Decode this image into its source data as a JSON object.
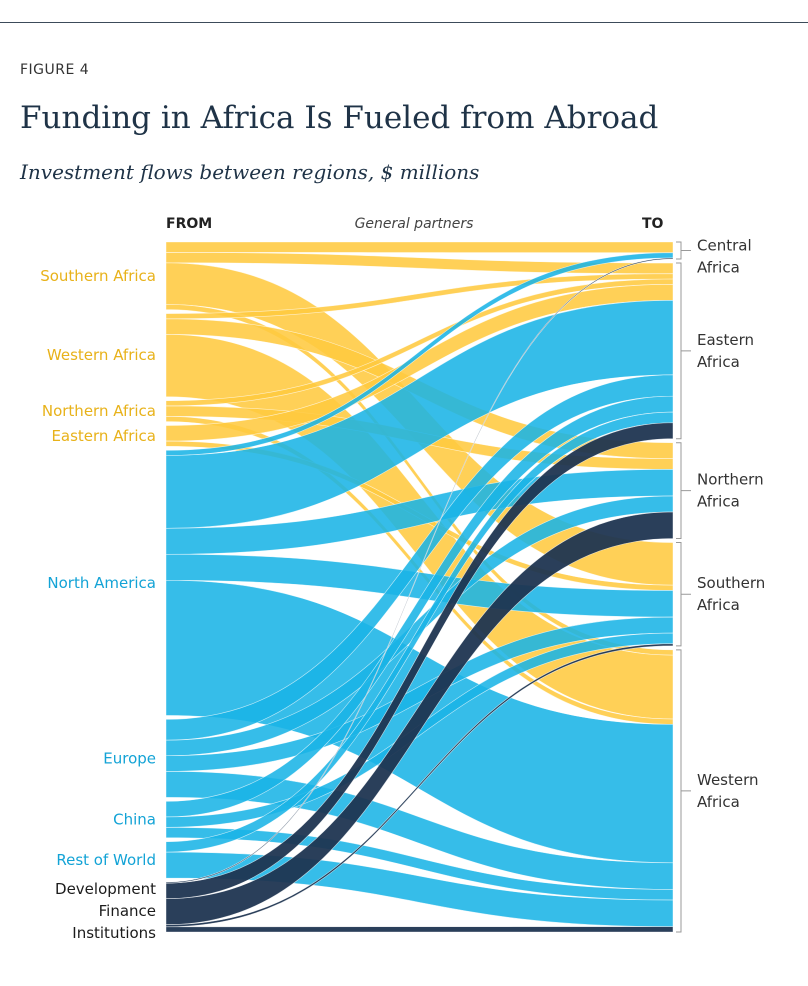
{
  "figure_label": "FIGURE 4",
  "title": "Funding in Africa Is Fueled from Abroad",
  "subtitle": "Investment flows between regions, $ millions",
  "colors": {
    "african": "#ffc940",
    "foreign": "#1ab4e6",
    "dfi": "#1f3551",
    "left_label_african": "#e8b21a",
    "left_label_foreign": "#13a3d6",
    "right_label": "#333333"
  },
  "chart_data": {
    "type": "sankey",
    "header_from": "FROM",
    "header_middle": "General partners",
    "header_to": "TO",
    "sources": [
      {
        "name": "Southern Africa",
        "group": "african"
      },
      {
        "name": "Western Africa",
        "group": "african"
      },
      {
        "name": "Northern Africa",
        "group": "african"
      },
      {
        "name": "Eastern Africa",
        "group": "african"
      },
      {
        "name": "North America",
        "group": "foreign"
      },
      {
        "name": "Europe",
        "group": "foreign"
      },
      {
        "name": "China",
        "group": "foreign"
      },
      {
        "name": "Rest of World",
        "group": "foreign"
      },
      {
        "name": "Development Finance Institutions",
        "group": "dfi"
      }
    ],
    "targets": [
      {
        "name": "Central Africa"
      },
      {
        "name": "Eastern Africa"
      },
      {
        "name": "Northern Africa"
      },
      {
        "name": "Southern Africa"
      },
      {
        "name": "Western Africa"
      }
    ],
    "flows": [
      {
        "from": "Southern Africa",
        "to": "Central Africa",
        "value": 10
      },
      {
        "from": "Southern Africa",
        "to": "Eastern Africa",
        "value": 10
      },
      {
        "from": "Southern Africa",
        "to": "Southern Africa",
        "value": 40
      },
      {
        "from": "Southern Africa",
        "to": "Western Africa",
        "value": 5
      },
      {
        "from": "Western Africa",
        "to": "Eastern Africa",
        "value": 5
      },
      {
        "from": "Western Africa",
        "to": "Northern Africa",
        "value": 15
      },
      {
        "from": "Western Africa",
        "to": "Western Africa",
        "value": 60
      },
      {
        "from": "Northern Africa",
        "to": "Eastern Africa",
        "value": 5
      },
      {
        "from": "Northern Africa",
        "to": "Northern Africa",
        "value": 10
      },
      {
        "from": "Northern Africa",
        "to": "Western Africa",
        "value": 5
      },
      {
        "from": "Eastern Africa",
        "to": "Eastern Africa",
        "value": 15
      },
      {
        "from": "Eastern Africa",
        "to": "Southern Africa",
        "value": 5
      },
      {
        "from": "North America",
        "to": "Central Africa",
        "value": 5
      },
      {
        "from": "North America",
        "to": "Eastern Africa",
        "value": 70
      },
      {
        "from": "North America",
        "to": "Northern Africa",
        "value": 25
      },
      {
        "from": "North America",
        "to": "Southern Africa",
        "value": 25
      },
      {
        "from": "North America",
        "to": "Western Africa",
        "value": 130
      },
      {
        "from": "Europe",
        "to": "Eastern Africa",
        "value": 20
      },
      {
        "from": "Europe",
        "to": "Northern Africa",
        "value": 15
      },
      {
        "from": "Europe",
        "to": "Southern Africa",
        "value": 15
      },
      {
        "from": "Europe",
        "to": "Western Africa",
        "value": 25
      },
      {
        "from": "China",
        "to": "Eastern Africa",
        "value": 15
      },
      {
        "from": "China",
        "to": "Southern Africa",
        "value": 10
      },
      {
        "from": "China",
        "to": "Western Africa",
        "value": 10
      },
      {
        "from": "Rest of World",
        "to": "Eastern Africa",
        "value": 10
      },
      {
        "from": "Rest of World",
        "to": "Western Africa",
        "value": 25
      },
      {
        "from": "Development Finance Institutions",
        "to": "Eastern Africa",
        "value": 15
      },
      {
        "from": "Development Finance Institutions",
        "to": "Northern Africa",
        "value": 25
      },
      {
        "from": "Development Finance Institutions",
        "to": "Southern Africa",
        "value": 2
      },
      {
        "from": "Development Finance Institutions",
        "to": "Western Africa",
        "value": 5
      },
      {
        "from": "Development Finance Institutions",
        "to": "Central Africa",
        "value": 1
      }
    ]
  }
}
